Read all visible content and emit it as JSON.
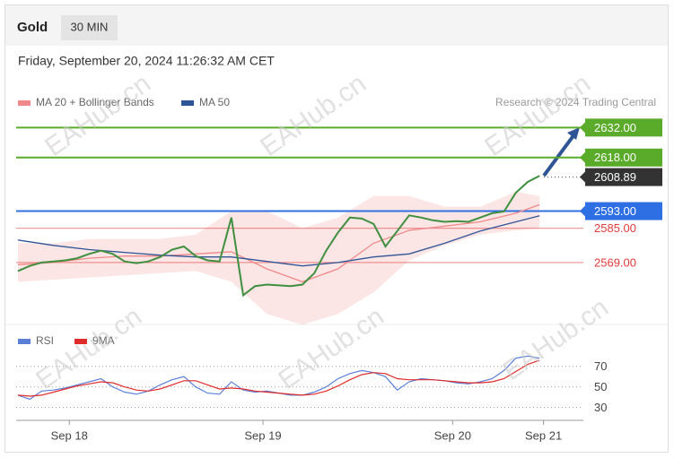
{
  "header": {
    "title": "Gold",
    "interval": "30 MIN"
  },
  "subtitle": "Friday, September 20, 2024 11:26:32 AM CET",
  "watermark": "EAHub.cn",
  "chart_data": [
    {
      "type": "line",
      "source": "Research © 2024 Trading Central",
      "ylim": [
        2543,
        2638
      ],
      "xlim": [
        0,
        134
      ],
      "price": {
        "color": "#3f8f3f",
        "x": [
          0,
          3,
          6,
          9,
          12,
          15,
          18,
          21,
          24,
          27,
          30,
          33,
          36,
          39,
          42,
          45,
          48,
          51,
          54,
          57,
          60,
          63,
          66,
          69,
          72,
          75,
          78,
          81,
          84,
          87,
          90,
          93,
          96,
          99,
          102,
          105,
          108,
          111,
          114,
          117,
          120,
          123,
          126,
          129,
          132
        ],
        "values": [
          2565,
          2567.4,
          2569,
          2569.5,
          2570,
          2571,
          2573,
          2574.5,
          2573,
          2569.5,
          2568.7,
          2569.5,
          2571.6,
          2575,
          2576.5,
          2572,
          2570,
          2569.5,
          2590,
          2553.7,
          2558,
          2558.7,
          2558.3,
          2558,
          2558.7,
          2564,
          2574.5,
          2583,
          2590,
          2589.5,
          2587,
          2576.5,
          2583.7,
          2591,
          2590,
          2588.7,
          2588,
          2588.3,
          2588,
          2590,
          2592,
          2592.8,
          2601.6,
          2606.6,
          2609.5
        ]
      },
      "series": [
        {
          "name": "MA 20 + Bollinger Bands",
          "color": "#f08a8a",
          "x": [
            0,
            9,
            18,
            27,
            36,
            45,
            54,
            63,
            72,
            81,
            90,
            99,
            108,
            117,
            126,
            132
          ],
          "values": [
            2568,
            2569,
            2571,
            2572,
            2572,
            2573,
            2574,
            2566,
            2560,
            2566,
            2578,
            2584,
            2586,
            2588,
            2592,
            2596
          ],
          "upper": [
            2578,
            2578,
            2580,
            2580,
            2580,
            2582,
            2593,
            2593,
            2585,
            2590,
            2600,
            2600,
            2595,
            2595,
            2602,
            2600
          ],
          "lower": [
            2560,
            2561,
            2562,
            2563,
            2564,
            2565,
            2560,
            2545,
            2540,
            2545,
            2555,
            2570,
            2577,
            2582,
            2584,
            2585
          ]
        },
        {
          "name": "MA 50",
          "color": "#2f5597",
          "x": [
            0,
            9,
            18,
            27,
            36,
            45,
            54,
            63,
            72,
            81,
            90,
            99,
            108,
            117,
            126,
            132
          ],
          "values": [
            2579.5,
            2577,
            2575,
            2573.7,
            2572.4,
            2571.6,
            2571.6,
            2569.5,
            2567.4,
            2569,
            2571.6,
            2573,
            2578,
            2583.7,
            2588,
            2590.8
          ]
        }
      ],
      "levels": [
        {
          "value": 2632,
          "label": "2632.00",
          "color": "#5aab2a",
          "box": true
        },
        {
          "value": 2618,
          "label": "2618.00",
          "color": "#5aab2a",
          "box": true
        },
        {
          "value": 2608.89,
          "label": "2608.89",
          "color": "#333333",
          "box": true
        },
        {
          "value": 2593,
          "label": "2593.00",
          "color": "#2f6fe4",
          "box": true
        },
        {
          "value": 2585,
          "label": "2585.00",
          "color": "#e03a3a",
          "box": false
        },
        {
          "value": 2569,
          "label": "2569.00",
          "color": "#e03a3a",
          "box": false
        }
      ]
    },
    {
      "type": "line",
      "ylim": [
        21,
        82
      ],
      "yticks": [
        30,
        50,
        70
      ],
      "xlim": [
        0,
        134
      ],
      "xticks": [
        {
          "value": 13,
          "label": "Sep 18"
        },
        {
          "value": 62,
          "label": "Sep 19"
        },
        {
          "value": 110,
          "label": "Sep 20"
        },
        {
          "value": 133,
          "label": "Sep 21"
        }
      ],
      "x": [
        0,
        3,
        6,
        9,
        12,
        15,
        18,
        21,
        24,
        27,
        30,
        33,
        36,
        39,
        42,
        45,
        48,
        51,
        54,
        57,
        60,
        63,
        66,
        69,
        72,
        75,
        78,
        81,
        84,
        87,
        90,
        93,
        96,
        99,
        102,
        105,
        108,
        111,
        114,
        117,
        120,
        123,
        126,
        129,
        132
      ],
      "series": [
        {
          "name": "RSI",
          "color": "#5b7fd6",
          "values": [
            42,
            38,
            46,
            47,
            49,
            52,
            55,
            58,
            50,
            45,
            43,
            46,
            52,
            57,
            60,
            50,
            44,
            43,
            55,
            47,
            45,
            46,
            44,
            42,
            42,
            45,
            50,
            58,
            63,
            66,
            64,
            60,
            47,
            55,
            58,
            57,
            56,
            54,
            53,
            55,
            58,
            66,
            78,
            80,
            78
          ]
        },
        {
          "name": "9MA",
          "color": "#e02b2b",
          "values": [
            42,
            41,
            42,
            45,
            48,
            51,
            53,
            55,
            54,
            50,
            47,
            46,
            48,
            52,
            56,
            56,
            52,
            48,
            49,
            48,
            46,
            45,
            44,
            43,
            42,
            43,
            46,
            51,
            57,
            62,
            64,
            63,
            58,
            57,
            57,
            57,
            56,
            55,
            54,
            54,
            55,
            58,
            65,
            72,
            76
          ]
        }
      ]
    }
  ]
}
